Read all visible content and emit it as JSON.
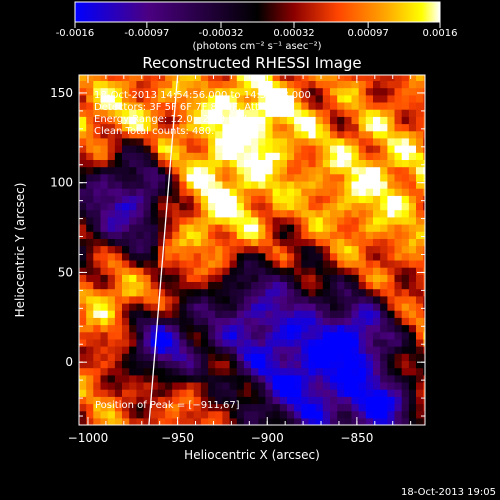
{
  "colorbar": {
    "tick_labels": [
      "-0.0016",
      "-0.00097",
      "-0.00032",
      "0.00032",
      "0.00097",
      "0.0016"
    ],
    "tick_values": [
      -0.0016,
      -0.00097,
      -0.00032,
      0.00032,
      0.00097,
      0.0016
    ],
    "range": [
      -0.0016,
      0.0016
    ],
    "units": "(photons cm⁻² s⁻¹ asec⁻²)",
    "palette": [
      "#0000ff",
      "#4b0082",
      "#000000",
      "#8b0000",
      "#ff4500",
      "#ffa500",
      "#ffff00",
      "#ffffff"
    ]
  },
  "chart_data": {
    "type": "heatmap",
    "title": "Reconstructed RHESSI Image",
    "xlabel": "Heliocentric X (arcsec)",
    "ylabel": "Heliocentric Y (arcsec)",
    "xlim": [
      -1005,
      -812
    ],
    "ylim": [
      -35,
      160
    ],
    "xticks": [
      -1000,
      -950,
      -900,
      -850
    ],
    "xtick_labels": [
      "−1000",
      "−950",
      "−900",
      "−850"
    ],
    "yticks": [
      0,
      50,
      100,
      150
    ],
    "ytick_labels": [
      "0",
      "50",
      "100",
      "150"
    ],
    "limb_line": [
      [
        -966,
        -35
      ],
      [
        -950,
        160
      ]
    ],
    "annotations": [
      "18-Oct-2013 14:54:56.000 to 14:55:08.000",
      "Detectors: 3F 5F 6F 7F 8F 9F, Att 0",
      "Energy Range: 12.0 - 25.0 keV",
      "Clean      Total counts: 480."
    ],
    "peak_label": "Position of Peak = [−911,67]",
    "peak_position": [
      -911,
      67
    ]
  },
  "footer": {
    "timestamp": "18-Oct-2013 19:05"
  }
}
